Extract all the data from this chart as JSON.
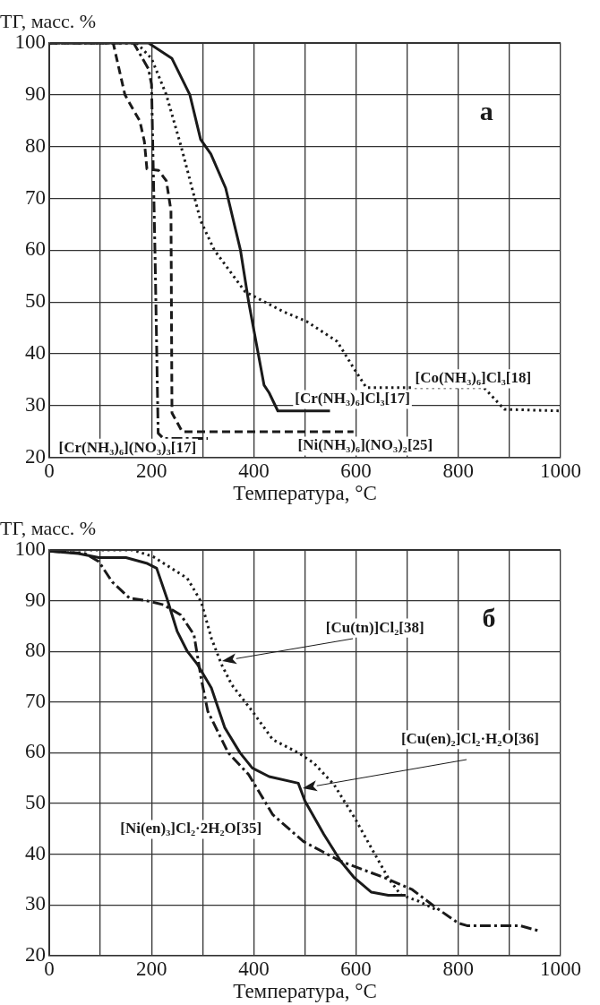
{
  "chart_data": [
    {
      "type": "line",
      "ylabel": "ТГ, масс. %",
      "xlabel": "Температура, °C",
      "xlim": [
        0,
        1000
      ],
      "ylim": [
        20,
        100
      ],
      "xticks": [
        0,
        {
          "value": 100,
          "label": null
        },
        200,
        {
          "value": 300,
          "label": null
        },
        400,
        {
          "value": 500,
          "label": null
        },
        600,
        {
          "value": 700,
          "label": null
        },
        800,
        {
          "value": 900,
          "label": null
        },
        1000
      ],
      "yticks": [
        20,
        30,
        40,
        50,
        60,
        70,
        80,
        90,
        100
      ],
      "grid": true,
      "marker": "none",
      "series": [
        {
          "color": "#1a1a1a",
          "line_style": "solid",
          "x": [
            0,
            194,
            240,
            275,
            296,
            316,
            345,
            374,
            390,
            420,
            430,
            447,
            549
          ],
          "values": [
            100,
            100,
            97,
            90,
            81.4,
            78.6,
            72,
            60,
            50,
            34,
            32.5,
            29,
            29
          ]
        },
        {
          "color": "#1a1a1a",
          "line_style": "dotted",
          "x": [
            0,
            171,
            200,
            229,
            258,
            296,
            323,
            383,
            457,
            503,
            563,
            597,
            620,
            850,
            890,
            1000
          ],
          "values": [
            100,
            100,
            97,
            90,
            80,
            65.7,
            60,
            52,
            48.2,
            46.3,
            42.4,
            37,
            33.5,
            33.5,
            29.3,
            29
          ]
        },
        {
          "color": "#1a1a1a",
          "line_style": "dashed",
          "x": [
            0,
            125,
            148,
            165,
            177,
            186,
            191,
            214,
            229,
            238,
            240,
            260,
            595
          ],
          "values": [
            100,
            100,
            90,
            87,
            85,
            81,
            75.7,
            75.4,
            73.4,
            67.7,
            28.6,
            25,
            25
          ]
        },
        {
          "color": "#1a1a1a",
          "line_style": "dashdot",
          "x": [
            0,
            165,
            194,
            200,
            207,
            213,
            223,
            310
          ],
          "values": [
            100,
            100,
            95,
            92,
            58.6,
            24.7,
            23.7,
            23.7
          ]
        }
      ],
      "annotations": [
        "а",
        "[Co(NH₃)₆]Cl₃[18]",
        "[Cr(NH₃)₆]Cl₃[17]",
        "[Cr(NH₃)₆](NO₃)₃[17]",
        "[Ni(NH₃)₆](NO₃)₂[25]"
      ]
    },
    {
      "type": "line",
      "ylabel": "ТГ, масс. %",
      "xlabel": "Температура, °C",
      "xlim": [
        0,
        1000
      ],
      "ylim": [
        20,
        100
      ],
      "xticks": [
        0,
        {
          "value": 100,
          "label": null
        },
        200,
        {
          "value": 300,
          "label": null
        },
        400,
        {
          "value": 500,
          "label": null
        },
        600,
        {
          "value": 700,
          "label": null
        },
        800,
        {
          "value": 900,
          "label": null
        },
        1000
      ],
      "yticks": [
        20,
        30,
        40,
        50,
        60,
        70,
        80,
        90,
        100
      ],
      "grid": true,
      "marker": "none",
      "series": [
        {
          "color": "#1a1a1a",
          "line_style": "solid",
          "x": [
            0,
            57,
            97,
            150,
            190,
            210,
            230,
            250,
            270,
            290,
            317,
            343,
            373,
            397,
            430,
            487,
            500,
            537,
            570,
            597,
            630,
            663,
            697
          ],
          "values": [
            99.8,
            99.3,
            98.5,
            98.5,
            97.4,
            96.4,
            90.5,
            84,
            80,
            77.4,
            72.8,
            65,
            60,
            57,
            55.3,
            54,
            50.5,
            43.9,
            38.6,
            35.3,
            32.5,
            31.9,
            31.9
          ]
        },
        {
          "color": "#1a1a1a",
          "line_style": "dotted",
          "x": [
            0,
            163,
            203,
            270,
            297,
            317,
            337,
            357,
            397,
            437,
            487,
            517,
            557,
            597,
            630,
            663,
            687,
            723,
            757
          ],
          "values": [
            100,
            100,
            98.7,
            94.4,
            89.8,
            82.6,
            77.4,
            73.4,
            68.2,
            62.6,
            60,
            58,
            53.7,
            47.2,
            41.2,
            35.3,
            32,
            30.7,
            29
          ]
        },
        {
          "color": "#1a1a1a",
          "line_style": "dashdot",
          "x": [
            0,
            70,
            97,
            123,
            157,
            190,
            223,
            257,
            283,
            297,
            310,
            350,
            390,
            437,
            497,
            570,
            657,
            710,
            757,
            800,
            817,
            920,
            957
          ],
          "values": [
            99.8,
            99.3,
            97.7,
            93.7,
            90.5,
            90,
            89.2,
            87.2,
            83.3,
            74.7,
            68.2,
            60,
            55.7,
            47.8,
            42.5,
            38.6,
            35.3,
            33,
            29.4,
            26.4,
            25.9,
            25.9,
            24.9
          ]
        }
      ],
      "annotations": [
        "б",
        "[Cu(tn)]Cl₂[38]",
        "[Cu(en)₂]Cl₂·H₂O[36]",
        "[Ni(en)₃]Cl₂·2H₂O[35]"
      ]
    }
  ]
}
